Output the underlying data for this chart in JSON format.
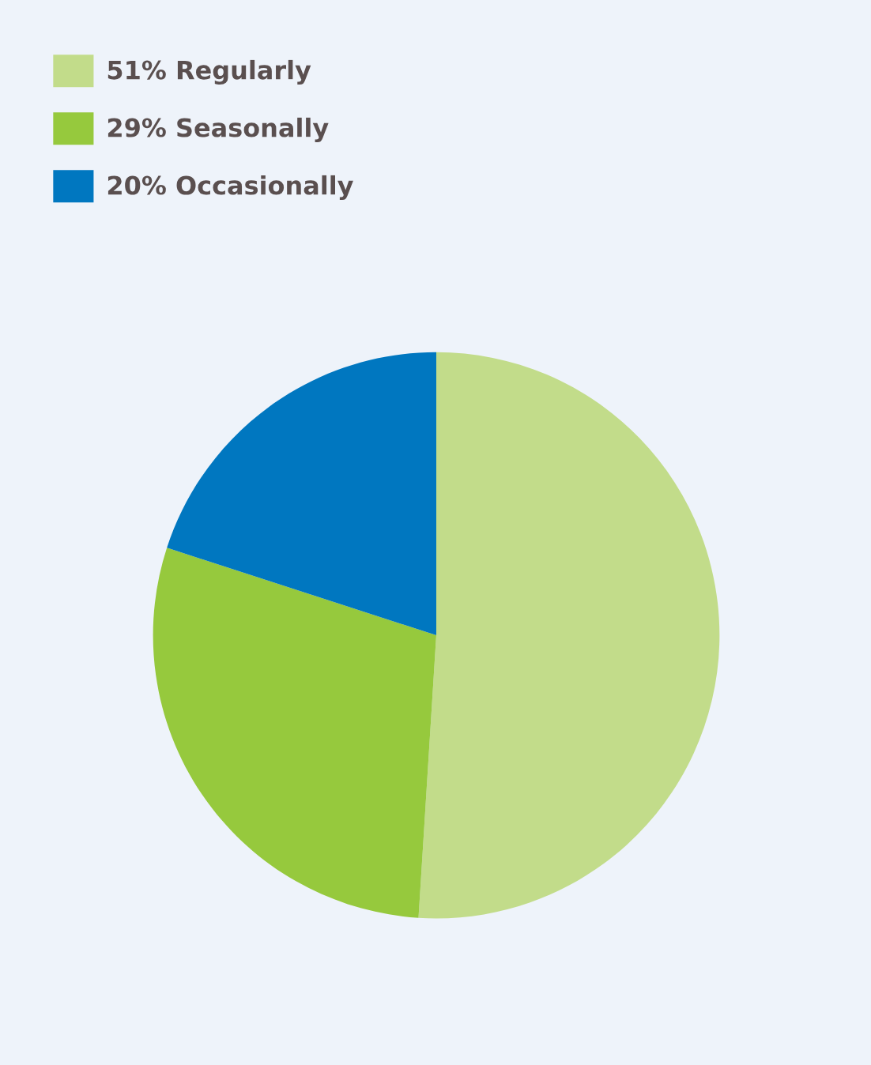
{
  "chart_data": {
    "type": "pie",
    "categories": [
      "Regularly",
      "Seasonally",
      "Occasionally"
    ],
    "values": [
      51,
      29,
      20
    ],
    "value_labels": [
      "51%",
      "29%",
      "20%"
    ],
    "colors": [
      "#c2dc8a",
      "#96c93d",
      "#0077c0"
    ],
    "legend": "top left"
  }
}
